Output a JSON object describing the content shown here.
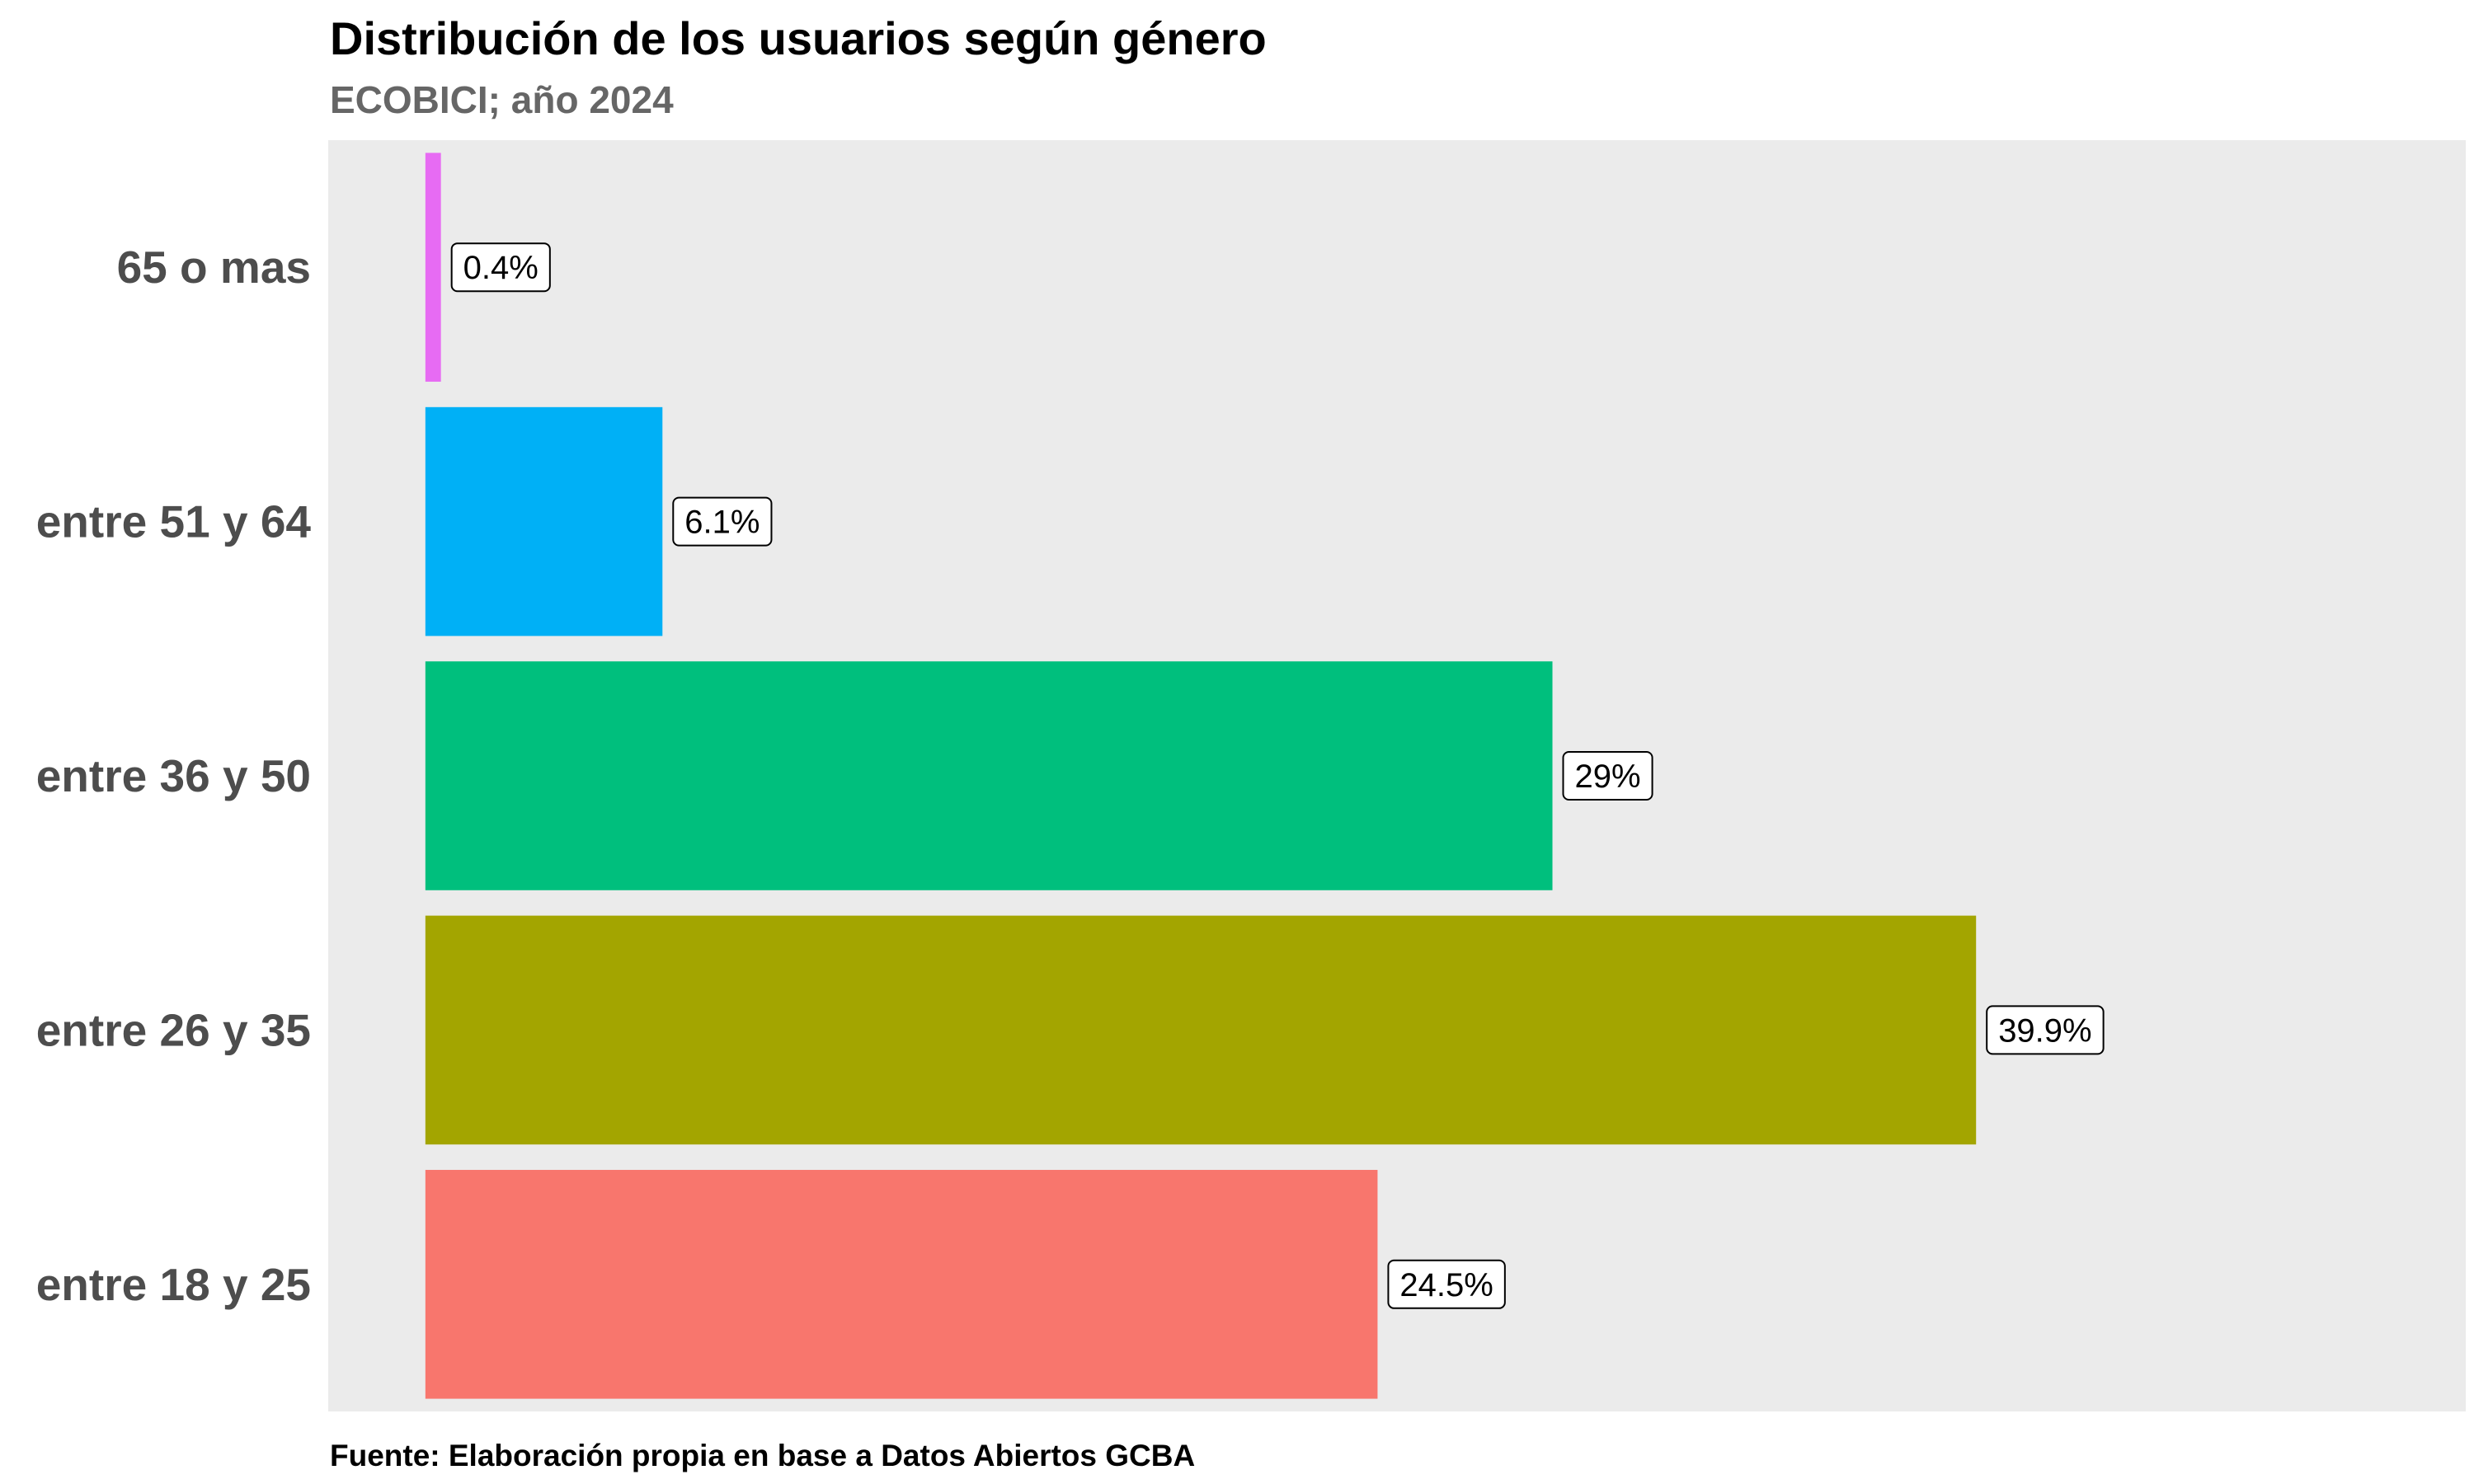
{
  "chart_data": {
    "type": "bar",
    "orientation": "horizontal",
    "title": "Distribución de los usuarios según género",
    "subtitle": "ECOBICI; año 2024",
    "caption": "Fuente: Elaboración propia en base a Datos Abiertos GCBA",
    "xlabel": "",
    "ylabel": "",
    "categories": [
      "entre 18 y 25",
      "entre 26 y 35",
      "entre 36 y 50",
      "entre 51 y 64",
      "65 o mas"
    ],
    "values": [
      24.5,
      39.9,
      29.0,
      6.1,
      0.4
    ],
    "data_labels": [
      "24.5%",
      "39.9%",
      "29%",
      "6.1%",
      "0.4%"
    ],
    "colors": [
      "#F8766D",
      "#A3A500",
      "#00BF7D",
      "#00B0F6",
      "#E76BF3"
    ],
    "xlim": [
      -2.5,
      52.5
    ],
    "panel_background": "#EBEBEB",
    "grid": false,
    "legend": "none"
  }
}
